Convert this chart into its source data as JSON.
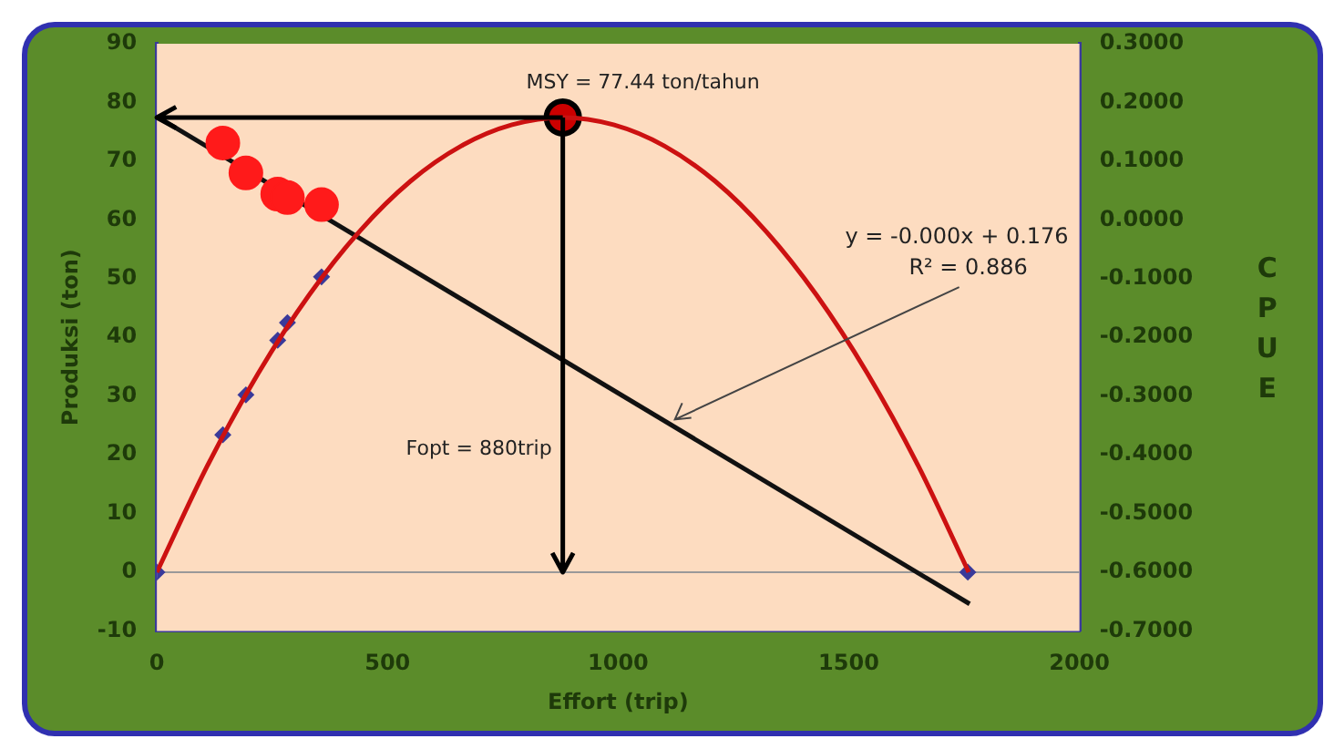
{
  "chart_data": {
    "type": "line",
    "xlabel": "Effort (trip)",
    "ylabel": "Produksi (ton)",
    "y2label": "CPUE",
    "xlim": [
      0,
      2000
    ],
    "xticks": [
      0,
      500,
      1000,
      1500,
      2000
    ],
    "ylim": [
      -10,
      90
    ],
    "yticks": [
      -10,
      0,
      10,
      20,
      30,
      40,
      50,
      60,
      70,
      80,
      90
    ],
    "y2lim": [
      -0.7,
      0.3
    ],
    "y2ticks": [
      {
        "value": -0.7,
        "label": "-0.7000"
      },
      {
        "value": -0.6,
        "label": "-0.6000"
      },
      {
        "value": -0.5,
        "label": "-0.5000"
      },
      {
        "value": -0.4,
        "label": "-0.4000"
      },
      {
        "value": -0.3,
        "label": "-0.3000"
      },
      {
        "value": -0.2,
        "label": "-0.2000"
      },
      {
        "value": -0.1,
        "label": "-0.1000"
      },
      {
        "value": 0,
        "label": "0.0000"
      },
      {
        "value": 0.1,
        "label": "0.1000"
      },
      {
        "value": 0.2,
        "label": "0.2000"
      },
      {
        "value": 0.3,
        "label": "0.3000"
      }
    ],
    "grid": false,
    "legend": false,
    "series": [
      {
        "color": "#cc1111",
        "marker": "none",
        "x": [
          0,
          110,
          220,
          330,
          440,
          550,
          660,
          770,
          880,
          990,
          1100,
          1210,
          1320,
          1430,
          1540,
          1650,
          1760
        ],
        "values": [
          0,
          18.2,
          33.9,
          47.2,
          58.1,
          66.6,
          72.6,
          76.2,
          77.44,
          76.2,
          72.6,
          66.6,
          58.1,
          47.2,
          33.9,
          18.2,
          0
        ]
      },
      {
        "type": "scatter",
        "color": "#3a3a9a",
        "marker": "diamond",
        "x": [
          0,
          143,
          193,
          262,
          283,
          357,
          1758
        ],
        "values": [
          0,
          23.4,
          30.2,
          39.5,
          42.5,
          50.3,
          0
        ]
      },
      {
        "type": "scatter",
        "color": "#ff1a1a",
        "marker": "circle",
        "axis": "y2",
        "x": [
          143,
          193,
          262,
          283,
          357
        ],
        "values": [
          0.131,
          0.08,
          0.044,
          0.038,
          0.026
        ]
      },
      {
        "color": "#111111",
        "marker": "none",
        "axis": "y2",
        "x": [
          0,
          1762
        ],
        "values": [
          0.176,
          -0.654
        ]
      },
      {
        "type": "scatter",
        "color": "#cc0000",
        "marker": "circle",
        "x": [
          880
        ],
        "values": [
          77.44
        ]
      }
    ],
    "ref_lines": [
      {
        "axis": "y",
        "value": 0,
        "color": "#999999"
      }
    ],
    "annotations": [
      {
        "text": "MSY = 77.44 ton/tahun",
        "x": 880,
        "y": 77.44
      },
      "Fopt = 880trip",
      "y = -0.000x + 0.176",
      {
        "text": "R² = 0.886",
        "x": 1123,
        "y": 26
      }
    ]
  }
}
